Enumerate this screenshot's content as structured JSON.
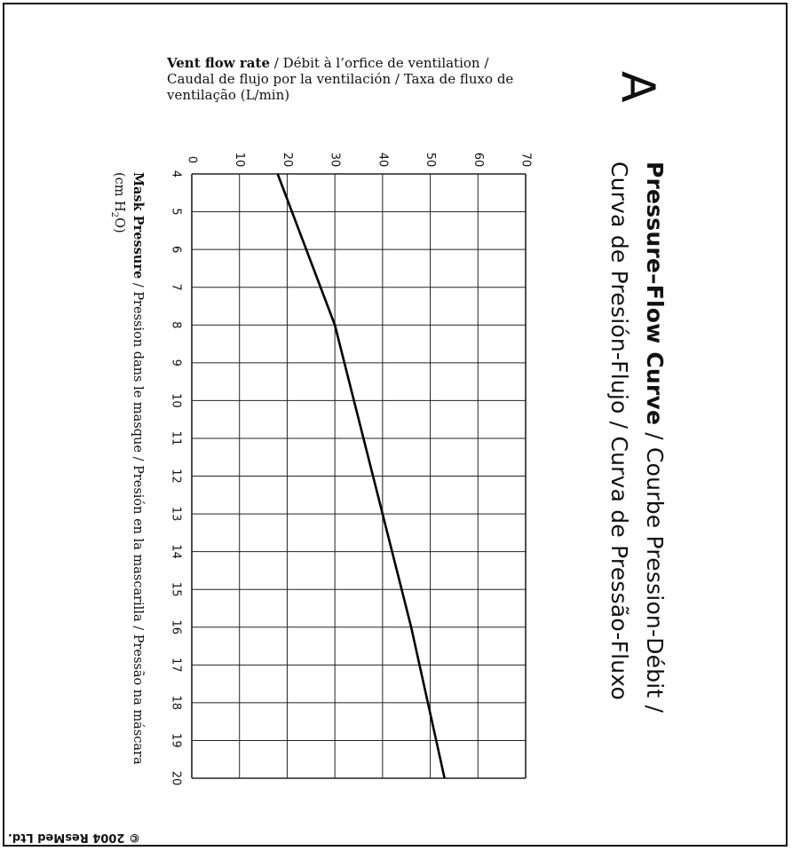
{
  "panel_letter": "A",
  "title": {
    "bold": "Pressure–Flow Curve",
    "rest_line1": " / Courbe Pression-Débit /",
    "line2": "Curva de Presión-Flujo / Curva de Pressão-Fluxo"
  },
  "copyright": "© 2004 ResMed Ltd.",
  "chart_data": {
    "type": "line",
    "title": "Pressure–Flow Curve / Courbe Pression-Débit / Curva de Presión-Flujo / Curva de Pressão-Fluxo",
    "xlabel_bold": "Mask Pressure",
    "xlabel_rest": " / Pression dans le masque / Presión en la mascarilla / Pressão na máscara",
    "xlabel_unit": "(cm H",
    "xlabel_unit_sub": "2",
    "xlabel_unit_end": "O)",
    "ylabel_bold": "Vent flow rate",
    "ylabel_rest": " /  Débit à l’orfice de ventilation / Caudal de flujo por la ventilación / Taxa de fluxo de ventilação  (L/min)",
    "x_ticks": [
      "4",
      "5",
      "6",
      "7",
      "8",
      "9",
      "10",
      "11",
      "12",
      "13",
      "14",
      "15",
      "16",
      "17",
      "18",
      "19",
      "20"
    ],
    "y_ticks": [
      "0",
      "10",
      "20",
      "30",
      "40",
      "50",
      "60",
      "70"
    ],
    "xlim": [
      4,
      20
    ],
    "ylim": [
      0,
      70
    ],
    "grid": true,
    "series": [
      {
        "x": [
          4,
          8,
          13,
          16,
          20
        ],
        "y": [
          18,
          30,
          40,
          46,
          53
        ]
      }
    ]
  }
}
